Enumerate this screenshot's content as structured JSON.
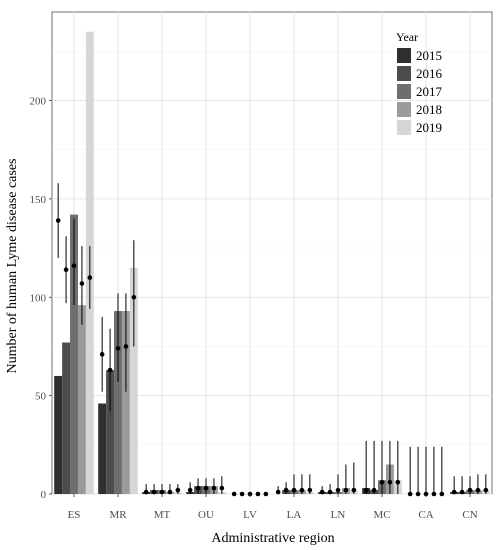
{
  "chart_data": {
    "type": "bar",
    "xlabel": "Administrative region",
    "ylabel": "Number of human Lyme disease cases",
    "ylim": [
      0,
      245
    ],
    "yticks": [
      0,
      50,
      100,
      150,
      200
    ],
    "grid": true,
    "legend_title": "Year",
    "legend_position": "top-right",
    "categories": [
      "ES",
      "MR",
      "MT",
      "OU",
      "LV",
      "LA",
      "LN",
      "MC",
      "CA",
      "CN"
    ],
    "series": [
      {
        "name": "2015",
        "color": "#2f2f2f",
        "values": [
          60,
          46,
          1,
          1,
          0,
          0,
          1,
          3,
          0,
          1
        ],
        "estimate": [
          139,
          71,
          1,
          2,
          0,
          1,
          1,
          2,
          0,
          1
        ],
        "lower": [
          120,
          52,
          0,
          0,
          0,
          0,
          0,
          0,
          0,
          0
        ],
        "upper": [
          158,
          90,
          5,
          6,
          1,
          4,
          4,
          27,
          24,
          9
        ]
      },
      {
        "name": "2016",
        "color": "#4d4d4d",
        "values": [
          77,
          63,
          2,
          4,
          0,
          2,
          1,
          2,
          0,
          1
        ],
        "estimate": [
          114,
          63,
          1,
          3,
          0,
          2,
          1,
          2,
          0,
          1
        ],
        "lower": [
          97,
          42,
          0,
          0,
          0,
          0,
          0,
          0,
          0,
          0
        ],
        "upper": [
          131,
          84,
          5,
          8,
          1,
          6,
          5,
          27,
          24,
          9
        ]
      },
      {
        "name": "2017",
        "color": "#6e6e6e",
        "values": [
          142,
          93,
          2,
          4,
          0,
          2,
          1,
          7,
          0,
          2
        ],
        "estimate": [
          116,
          74,
          1,
          3,
          0,
          2,
          2,
          6,
          0,
          2
        ],
        "lower": [
          96,
          57,
          0,
          0,
          0,
          0,
          0,
          0,
          0,
          0
        ],
        "upper": [
          140,
          102,
          5,
          8,
          1,
          10,
          10,
          27,
          24,
          9
        ]
      },
      {
        "name": "2018",
        "color": "#9a9a9a",
        "values": [
          96,
          93,
          1,
          4,
          0,
          2,
          3,
          15,
          0,
          2
        ],
        "estimate": [
          107,
          75,
          1,
          3,
          0,
          2,
          2,
          6,
          0,
          2
        ],
        "lower": [
          86,
          52,
          0,
          0,
          0,
          0,
          0,
          0,
          0,
          0
        ],
        "upper": [
          126,
          102,
          5,
          8,
          1,
          10,
          15,
          27,
          24,
          10
        ]
      },
      {
        "name": "2019",
        "color": "#d6d6d6",
        "values": [
          235,
          115,
          1,
          1,
          0,
          1,
          2,
          7,
          0,
          2
        ],
        "estimate": [
          110,
          100,
          2,
          3,
          0,
          2,
          2,
          6,
          0,
          2
        ],
        "lower": [
          94,
          75,
          0,
          0,
          0,
          0,
          0,
          0,
          0,
          0
        ],
        "upper": [
          126,
          129,
          5,
          9,
          1,
          10,
          16,
          27,
          24,
          10
        ]
      }
    ]
  }
}
